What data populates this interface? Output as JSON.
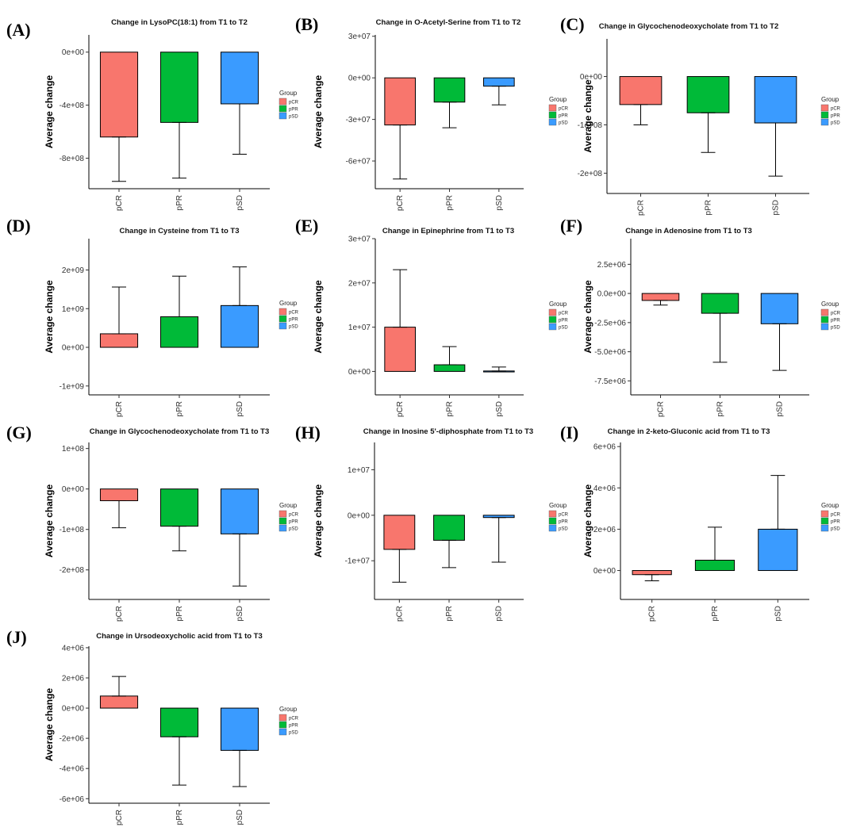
{
  "figure": {
    "legend_title": "Group",
    "colors": {
      "pCR": "#F8766D",
      "pPR": "#00BA38",
      "pSD": "#3A9BFF"
    }
  },
  "chart_data": [
    {
      "panel": "(A)",
      "type": "bar",
      "title": "Change in LysoPC(18:1) from T1 to T2",
      "ylabel": "Average change",
      "categories": [
        "pCR",
        "pPR",
        "pSD"
      ],
      "values": [
        -640000000,
        -530000000,
        -390000000
      ],
      "error_ends": [
        -975000000,
        -950000000,
        -770000000
      ],
      "ylim": [
        -1030000000,
        130000000
      ],
      "yticks": [
        0,
        -400000000,
        -800000000
      ],
      "yticklabels": [
        "0e+00",
        "-4e+08",
        "-8e+08"
      ],
      "legend": [
        "pCR",
        "pPR",
        "pSD"
      ],
      "legend_position": "right"
    },
    {
      "panel": "(B)",
      "type": "bar",
      "title": "Change in O-Acetyl-Serine from T1 to T2",
      "ylabel": "Average change",
      "categories": [
        "pCR",
        "pPR",
        "pSD"
      ],
      "values": [
        -34000000,
        -17500000,
        -6000000
      ],
      "error_ends": [
        -73000000,
        -36000000,
        -19500000
      ],
      "ylim": [
        -80000000,
        31000000
      ],
      "yticks": [
        30000000,
        0,
        -30000000,
        -60000000
      ],
      "yticklabels": [
        "3e+07",
        "0e+00",
        "-3e+07",
        "-6e+07"
      ],
      "legend": [
        "pCR",
        "pPR",
        "pSD"
      ],
      "legend_position": "right"
    },
    {
      "panel": "(C)",
      "type": "bar",
      "title": "Change in Glycochenodeoxycholate from T1 to T2",
      "ylabel": "Average change",
      "categories": [
        "pCR",
        "pPR",
        "pSD"
      ],
      "values": [
        -58000000,
        -75000000,
        -96000000
      ],
      "error_ends": [
        -100000000,
        -157000000,
        -206000000
      ],
      "ylim": [
        -242000000,
        78000000
      ],
      "yticks": [
        0,
        -100000000,
        -200000000
      ],
      "yticklabels": [
        "0e+00",
        "-1e+08",
        "-2e+08"
      ],
      "legend": [
        "pCR",
        "pPR",
        "pSD"
      ],
      "legend_position": "right"
    },
    {
      "panel": "(D)",
      "type": "bar",
      "title": "Change in Cysteine from T1 to T3",
      "ylabel": "Average change",
      "categories": [
        "pCR",
        "pPR",
        "pSD"
      ],
      "values": [
        350000000,
        790000000,
        1080000000
      ],
      "error_ends": [
        1560000000,
        1840000000,
        2080000000
      ],
      "ylim": [
        -1230000000,
        2810000000
      ],
      "yticks": [
        2000000000,
        1000000000,
        0,
        -1000000000
      ],
      "yticklabels": [
        "2e+09",
        "1e+09",
        "0e+00",
        "-1e+09"
      ],
      "legend": [
        "pCR",
        "pPR",
        "pSD"
      ],
      "legend_position": "right"
    },
    {
      "panel": "(E)",
      "type": "bar",
      "title": "Change in Epinephrine from T1 to T3",
      "ylabel": "Average change",
      "categories": [
        "pCR",
        "pPR",
        "pSD"
      ],
      "values": [
        10000000,
        1500000,
        100000
      ],
      "error_ends": [
        23000000,
        5600000,
        1000000
      ],
      "ylim": [
        -5300000,
        30000000
      ],
      "yticks": [
        30000000,
        20000000,
        10000000,
        0
      ],
      "yticklabels": [
        "3e+07",
        "2e+07",
        "1e+07",
        "0e+00"
      ],
      "legend": [
        "pCR",
        "pPR",
        "pSD"
      ],
      "legend_position": "right"
    },
    {
      "panel": "(F)",
      "type": "bar",
      "title": "Change in Adenosine from T1 to T3",
      "ylabel": "Average change",
      "categories": [
        "pCR",
        "pPR",
        "pSD"
      ],
      "values": [
        -600000,
        -1700000,
        -2600000
      ],
      "error_ends": [
        -1000000,
        -5900000,
        -6600000
      ],
      "ylim": [
        -8700000,
        4700000
      ],
      "yticks": [
        2500000,
        0,
        -2500000,
        -5000000,
        -7500000
      ],
      "yticklabels": [
        "2.5e+06",
        "0.0e+00",
        "-2.5e+06",
        "-5.0e+06",
        "-7.5e+06"
      ],
      "legend": [
        "pCR",
        "pPR",
        "pSD"
      ],
      "legend_position": "right"
    },
    {
      "panel": "(G)",
      "type": "bar",
      "title": "Change in Glycochenodeoxycholate from T1 to T3",
      "ylabel": "Average change",
      "categories": [
        "pCR",
        "pPR",
        "pSD"
      ],
      "values": [
        -29000000,
        -92000000,
        -111000000
      ],
      "error_ends": [
        -96000000,
        -153000000,
        -240000000
      ],
      "ylim": [
        -273000000,
        115000000
      ],
      "yticks": [
        100000000,
        0,
        -100000000,
        -200000000
      ],
      "yticklabels": [
        "1e+08",
        "0e+00",
        "-1e+08",
        "-2e+08"
      ],
      "legend": [
        "pCR",
        "pPR",
        "pSD"
      ],
      "legend_position": "right"
    },
    {
      "panel": "(H)",
      "type": "bar",
      "title": "Change in Inosine 5'-diphosphate from T1 to T3",
      "ylabel": "Average change",
      "categories": [
        "pCR",
        "pPR",
        "pSD"
      ],
      "values": [
        -7500000,
        -5500000,
        -500000
      ],
      "error_ends": [
        -14700000,
        -11500000,
        -10300000
      ],
      "ylim": [
        -18500000,
        16000000
      ],
      "yticks": [
        10000000,
        0,
        -10000000
      ],
      "yticklabels": [
        "1e+07",
        "0e+00",
        "-1e+07"
      ],
      "legend": [
        "pCR",
        "pPR",
        "pSD"
      ],
      "legend_position": "right"
    },
    {
      "panel": "(I)",
      "type": "bar",
      "title": "Change in 2-keto-Gluconic acid from T1 to T3",
      "ylabel": "Average change",
      "categories": [
        "pCR",
        "pPR",
        "pSD"
      ],
      "values": [
        -200000,
        500000,
        2000000
      ],
      "error_ends": [
        -500000,
        2100000,
        4600000
      ],
      "ylim": [
        -1400000,
        6200000
      ],
      "yticks": [
        6000000,
        4000000,
        2000000,
        0
      ],
      "yticklabels": [
        "6e+06",
        "4e+06",
        "2e+06",
        "0e+00"
      ],
      "legend": [
        "pCR",
        "pPR",
        "pSD"
      ],
      "legend_position": "right"
    },
    {
      "panel": "(J)",
      "type": "bar",
      "title": "Change in Ursodeoxycholic acid from T1 to T3",
      "ylabel": "Average change",
      "categories": [
        "pCR",
        "pPR",
        "pSD"
      ],
      "values": [
        800000,
        -1900000,
        -2800000
      ],
      "error_ends": [
        2100000,
        -5100000,
        -5200000
      ],
      "ylim": [
        -6300000,
        4100000
      ],
      "yticks": [
        4000000,
        2000000,
        0,
        -2000000,
        -4000000,
        -6000000
      ],
      "yticklabels": [
        "4e+06",
        "2e+06",
        "0e+00",
        "-2e+06",
        "-4e+06",
        "-6e+06"
      ],
      "legend": [
        "pCR",
        "pPR",
        "pSD"
      ],
      "legend_position": "right"
    }
  ]
}
